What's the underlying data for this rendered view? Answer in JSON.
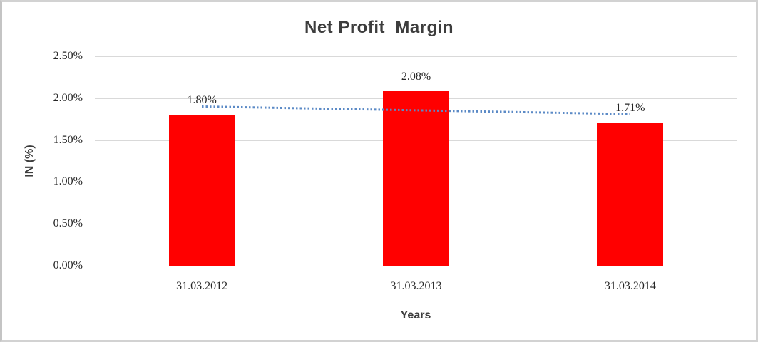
{
  "window": {
    "background": "#ffffff",
    "border_color": "#d2d2d2"
  },
  "chart_data": {
    "type": "bar",
    "title": "Net Profit  Margin",
    "categories": [
      "31.03.2012",
      "31.03.2013",
      "31.03.2014"
    ],
    "values": [
      1.8,
      2.08,
      1.71
    ],
    "value_labels": [
      "1.80%",
      "2.08%",
      "1.71%"
    ],
    "xlabel": "Years",
    "ylabel": "IN (%)",
    "ylim": [
      0,
      2.5
    ],
    "ytick_step": 0.5,
    "ytick_labels": [
      "0.00%",
      "0.50%",
      "1.00%",
      "1.50%",
      "2.00%",
      "2.50%"
    ],
    "grid": true,
    "legend": false,
    "bar_color": "#ff0000",
    "gridline_color": "#d9d9d9",
    "label_color": "#262626",
    "title_color": "#3d3d3d",
    "trendline": {
      "type": "linear",
      "style": "dotted",
      "color": "#5b8ac6"
    }
  }
}
